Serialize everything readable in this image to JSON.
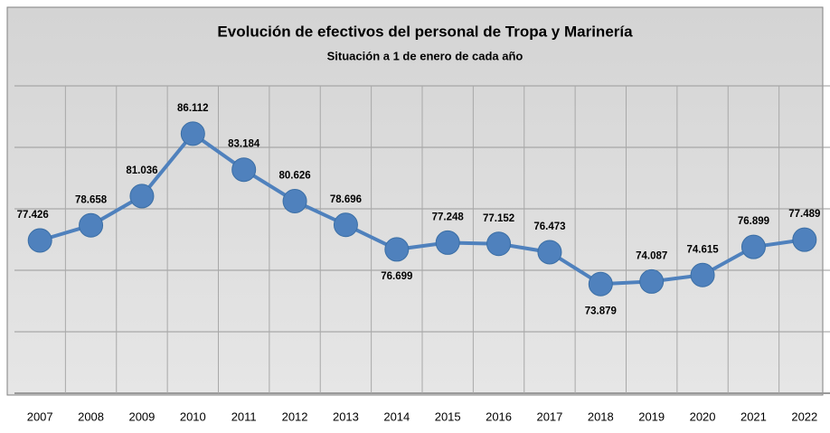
{
  "chart_data": {
    "type": "line",
    "title": "Evolución de efectivos del personal de Tropa y Marinería",
    "subtitle": "Situación a 1 de enero de cada año",
    "categories": [
      "2007",
      "2008",
      "2009",
      "2010",
      "2011",
      "2012",
      "2013",
      "2014",
      "2015",
      "2016",
      "2017",
      "2018",
      "2019",
      "2020",
      "2021",
      "2022"
    ],
    "series": [
      {
        "color": "#4f81bd",
        "values": [
          77426,
          78658,
          81036,
          86112,
          83184,
          80626,
          78696,
          76699,
          77248,
          77152,
          76473,
          73879,
          74087,
          74615,
          76899,
          77489
        ],
        "value_labels": [
          "77.426",
          "78.658",
          "81.036",
          "86.112",
          "83.184",
          "80.626",
          "78.696",
          "76.699",
          "77.248",
          "77.152",
          "76.473",
          "73.879",
          "74.087",
          "74.615",
          "76.899",
          "77.489"
        ]
      }
    ],
    "ylim": [
      65000,
      90000
    ],
    "yticks": [
      65000,
      70000,
      75000,
      80000,
      85000,
      90000
    ],
    "grid": true
  }
}
